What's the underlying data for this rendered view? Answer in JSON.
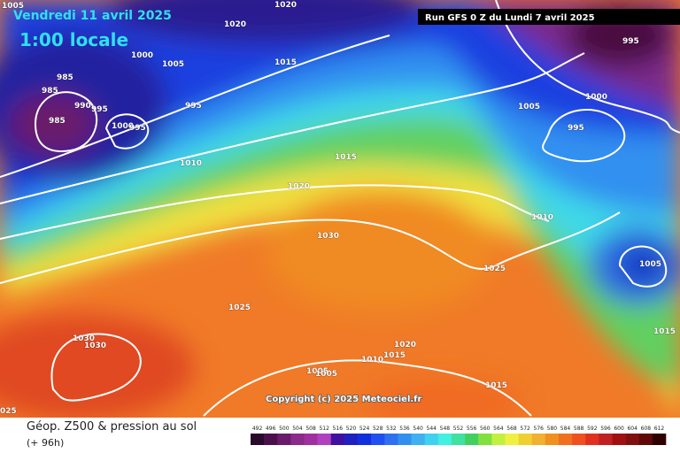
{
  "header": {
    "date": "Vendredi 11 avril 2025",
    "time": "1:00 locale",
    "run": "Run GFS 0 Z du Lundi 7 avril 2025"
  },
  "copyright": "Copyright (c) 2025 Meteociel.fr",
  "footer": {
    "title": "Géop. Z500 & pression au sol",
    "lead": "(+ 96h)"
  },
  "legend": {
    "values": [
      492,
      496,
      500,
      504,
      508,
      512,
      516,
      520,
      524,
      528,
      532,
      536,
      540,
      544,
      548,
      552,
      556,
      560,
      564,
      568,
      572,
      576,
      580,
      584,
      588,
      592,
      596,
      600,
      604,
      608,
      612
    ],
    "colors": [
      "#2a0a2a",
      "#4a104a",
      "#6a1a6a",
      "#8a2a8a",
      "#a030a0",
      "#b040c0",
      "#4010a0",
      "#2020c0",
      "#1030e0",
      "#2050f0",
      "#3070f0",
      "#3090f0",
      "#40b0f0",
      "#40d0f0",
      "#40f0e0",
      "#40e0a0",
      "#40d060",
      "#80e040",
      "#c0f040",
      "#f0f040",
      "#f0d030",
      "#f0b030",
      "#f09020",
      "#f07020",
      "#f05020",
      "#e03020",
      "#c02020",
      "#a01010",
      "#801010",
      "#600808",
      "#300000"
    ]
  },
  "isobar_labels": [
    "1005",
    "1020",
    "1020",
    "1000",
    "1005",
    "1015",
    "985",
    "985",
    "990",
    "995",
    "985",
    "1000",
    "995",
    "995",
    "1010",
    "1015",
    "1020",
    "1030",
    "1025",
    "1030",
    "1030",
    "1020",
    "1010",
    "1015",
    "1005",
    "1005",
    "1015",
    "025",
    "1025",
    "1010",
    "1005",
    "1000",
    "995",
    "995",
    "1005",
    "1015"
  ]
}
